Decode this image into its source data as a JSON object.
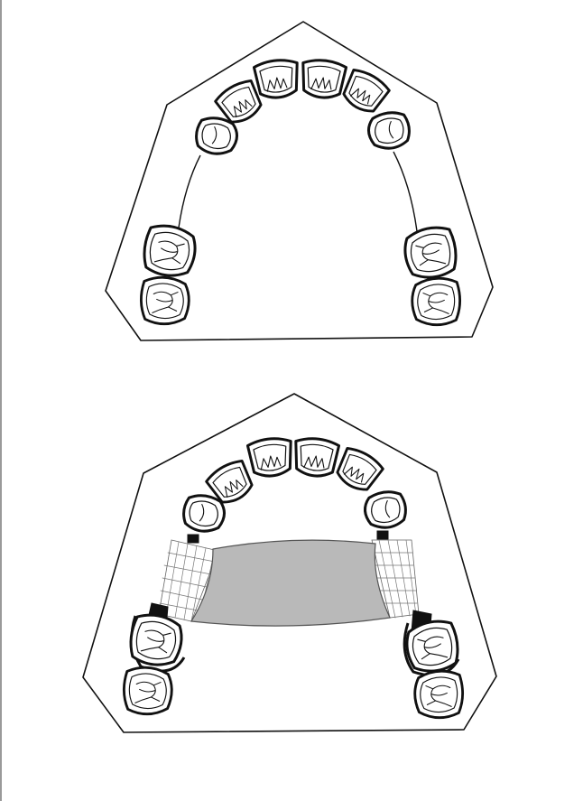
{
  "figures": [
    {
      "id": "upper-arch-without-prosthesis"
    },
    {
      "id": "upper-arch-with-partial-denture"
    }
  ],
  "colors": {
    "stroke": "#111111",
    "plate_fill": "#b9b9b9",
    "mesh_stroke": "#666666",
    "background": "#ffffff"
  }
}
